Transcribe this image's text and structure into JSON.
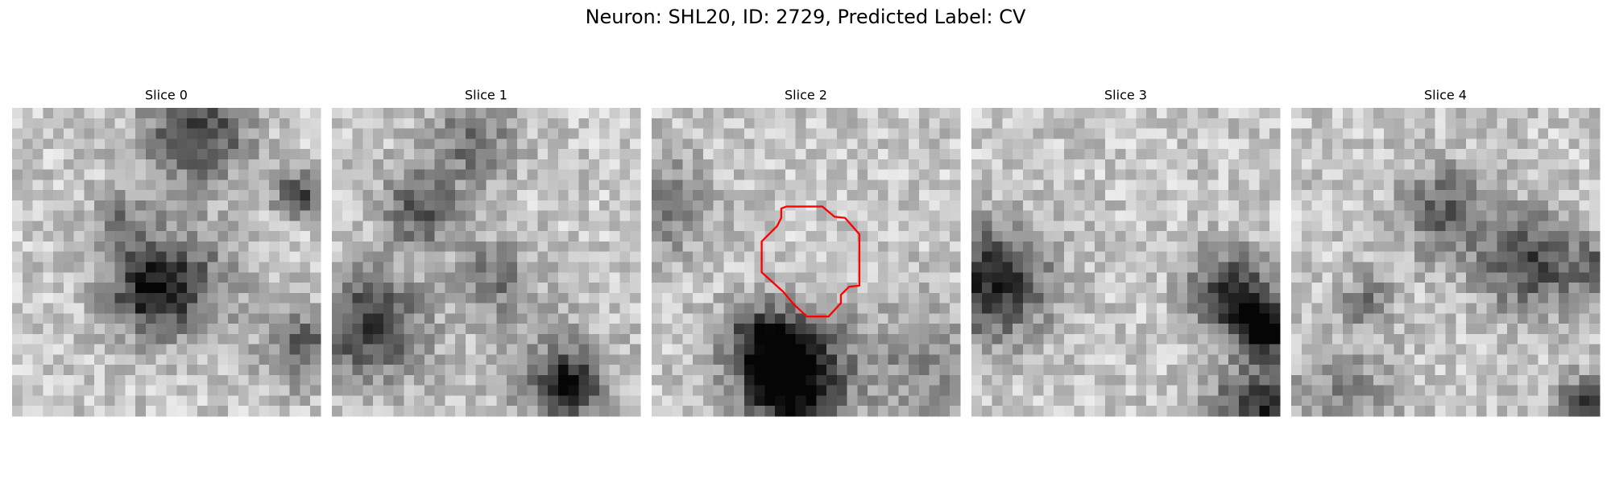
{
  "title": "Neuron: SHL20, ID: 2729, Predicted Label: CV",
  "panels": [
    {
      "title": "Slice 0"
    },
    {
      "title": "Slice 1"
    },
    {
      "title": "Slice 2"
    },
    {
      "title": "Slice 3"
    },
    {
      "title": "Slice 4"
    }
  ]
}
